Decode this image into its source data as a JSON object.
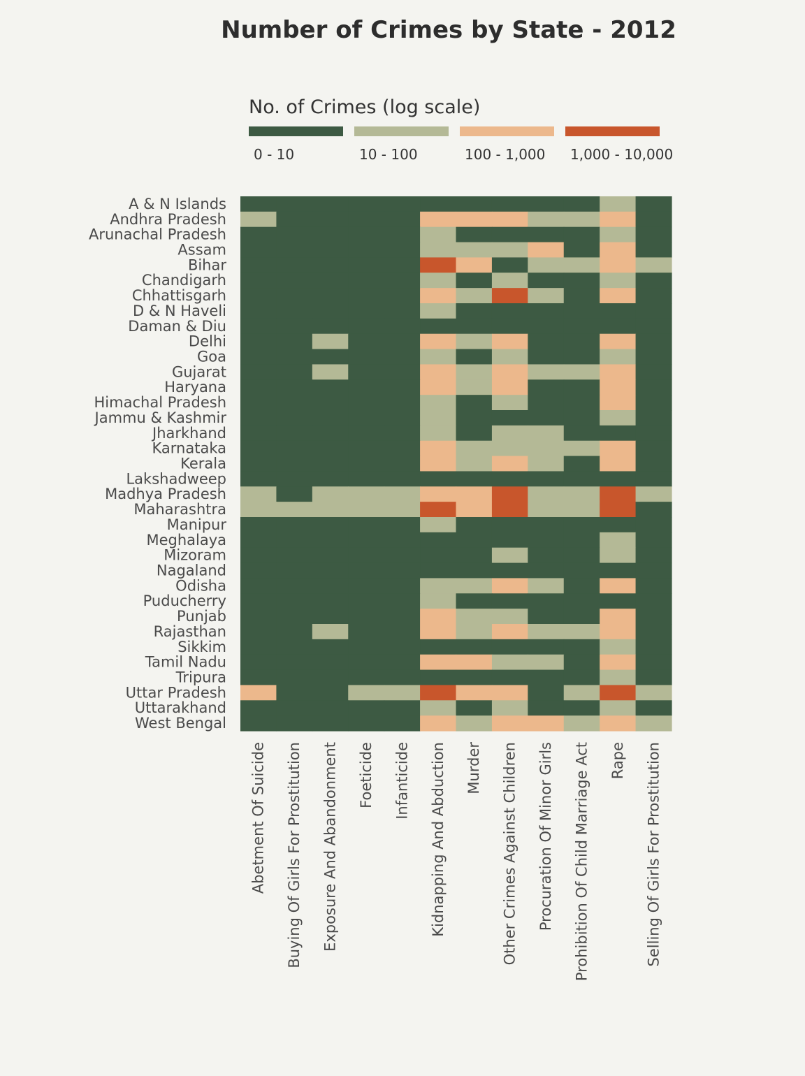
{
  "chart_data": {
    "type": "heatmap",
    "title": "Number of Crimes by State - 2012",
    "legend": {
      "title": "No. of Crimes (log scale)",
      "placement": "top",
      "bins": [
        {
          "label": "0 - 10",
          "color": "#3d5a43"
        },
        {
          "label": "10 - 100",
          "color": "#b4b996"
        },
        {
          "label": "100 - 1,000",
          "color": "#ecb88c"
        },
        {
          "label": "1,000 - 10,000",
          "color": "#c8562c"
        }
      ]
    },
    "value_encoding": "bin index 0-3 corresponding to legend bins",
    "columns": [
      "Abetment Of Suicide",
      "Buying Of Girls For Prostitution",
      "Exposure And Abandonment",
      "Foeticide",
      "Infanticide",
      "Kidnapping And Abduction",
      "Murder",
      "Other Crimes Against Children",
      "Procuration Of Minor Girls",
      "Prohibition Of Child Marriage Act",
      "Rape",
      "Selling Of Girls For Prostitution"
    ],
    "rows": [
      "A & N Islands",
      "Andhra Pradesh",
      "Arunachal Pradesh",
      "Assam",
      "Bihar",
      "Chandigarh",
      "Chhattisgarh",
      "D & N Haveli",
      "Daman & Diu",
      "Delhi",
      "Goa",
      "Gujarat",
      "Haryana",
      "Himachal Pradesh",
      "Jammu & Kashmir",
      "Jharkhand",
      "Karnataka",
      "Kerala",
      "Lakshadweep",
      "Madhya Pradesh",
      "Maharashtra",
      "Manipur",
      "Meghalaya",
      "Mizoram",
      "Nagaland",
      "Odisha",
      "Puducherry",
      "Punjab",
      "Rajasthan",
      "Sikkim",
      "Tamil Nadu",
      "Tripura",
      "Uttar Pradesh",
      "Uttarakhand",
      "West Bengal"
    ],
    "values": [
      [
        0,
        0,
        0,
        0,
        0,
        0,
        0,
        0,
        0,
        0,
        1,
        0
      ],
      [
        1,
        0,
        0,
        0,
        0,
        2,
        2,
        2,
        1,
        1,
        2,
        0
      ],
      [
        0,
        0,
        0,
        0,
        0,
        1,
        0,
        0,
        0,
        0,
        1,
        0
      ],
      [
        0,
        0,
        0,
        0,
        0,
        1,
        1,
        1,
        2,
        0,
        2,
        0
      ],
      [
        0,
        0,
        0,
        0,
        0,
        3,
        2,
        0,
        1,
        1,
        2,
        1
      ],
      [
        0,
        0,
        0,
        0,
        0,
        1,
        0,
        1,
        0,
        0,
        1,
        0
      ],
      [
        0,
        0,
        0,
        0,
        0,
        2,
        1,
        3,
        1,
        0,
        2,
        0
      ],
      [
        0,
        0,
        0,
        0,
        0,
        1,
        0,
        0,
        0,
        0,
        0,
        0
      ],
      [
        0,
        0,
        0,
        0,
        0,
        0,
        0,
        0,
        0,
        0,
        0,
        0
      ],
      [
        0,
        0,
        1,
        0,
        0,
        2,
        1,
        2,
        0,
        0,
        2,
        0
      ],
      [
        0,
        0,
        0,
        0,
        0,
        1,
        0,
        1,
        0,
        0,
        1,
        0
      ],
      [
        0,
        0,
        1,
        0,
        0,
        2,
        1,
        2,
        1,
        1,
        2,
        0
      ],
      [
        0,
        0,
        0,
        0,
        0,
        2,
        1,
        2,
        0,
        0,
        2,
        0
      ],
      [
        0,
        0,
        0,
        0,
        0,
        1,
        0,
        1,
        0,
        0,
        2,
        0
      ],
      [
        0,
        0,
        0,
        0,
        0,
        1,
        0,
        0,
        0,
        0,
        1,
        0
      ],
      [
        0,
        0,
        0,
        0,
        0,
        1,
        0,
        1,
        1,
        0,
        0,
        0
      ],
      [
        0,
        0,
        0,
        0,
        0,
        2,
        1,
        1,
        1,
        1,
        2,
        0
      ],
      [
        0,
        0,
        0,
        0,
        0,
        2,
        1,
        2,
        1,
        0,
        2,
        0
      ],
      [
        0,
        0,
        0,
        0,
        0,
        0,
        0,
        0,
        0,
        0,
        0,
        0
      ],
      [
        1,
        0,
        1,
        1,
        1,
        2,
        2,
        3,
        1,
        1,
        3,
        1
      ],
      [
        1,
        1,
        1,
        1,
        1,
        3,
        2,
        3,
        1,
        1,
        3,
        0
      ],
      [
        0,
        0,
        0,
        0,
        0,
        1,
        0,
        0,
        0,
        0,
        0,
        0
      ],
      [
        0,
        0,
        0,
        0,
        0,
        0,
        0,
        0,
        0,
        0,
        1,
        0
      ],
      [
        0,
        0,
        0,
        0,
        0,
        0,
        0,
        1,
        0,
        0,
        1,
        0
      ],
      [
        0,
        0,
        0,
        0,
        0,
        0,
        0,
        0,
        0,
        0,
        0,
        0
      ],
      [
        0,
        0,
        0,
        0,
        0,
        1,
        1,
        2,
        1,
        0,
        2,
        0
      ],
      [
        0,
        0,
        0,
        0,
        0,
        1,
        0,
        0,
        0,
        0,
        0,
        0
      ],
      [
        0,
        0,
        0,
        0,
        0,
        2,
        1,
        1,
        0,
        0,
        2,
        0
      ],
      [
        0,
        0,
        1,
        0,
        0,
        2,
        1,
        2,
        1,
        1,
        2,
        0
      ],
      [
        0,
        0,
        0,
        0,
        0,
        0,
        0,
        0,
        0,
        0,
        1,
        0
      ],
      [
        0,
        0,
        0,
        0,
        0,
        2,
        2,
        1,
        1,
        0,
        2,
        0
      ],
      [
        0,
        0,
        0,
        0,
        0,
        0,
        0,
        0,
        0,
        0,
        1,
        0
      ],
      [
        2,
        0,
        0,
        1,
        1,
        3,
        2,
        2,
        0,
        1,
        3,
        1
      ],
      [
        0,
        0,
        0,
        0,
        0,
        1,
        0,
        1,
        0,
        0,
        1,
        0
      ],
      [
        0,
        0,
        0,
        0,
        0,
        2,
        1,
        2,
        2,
        1,
        2,
        1
      ]
    ]
  }
}
